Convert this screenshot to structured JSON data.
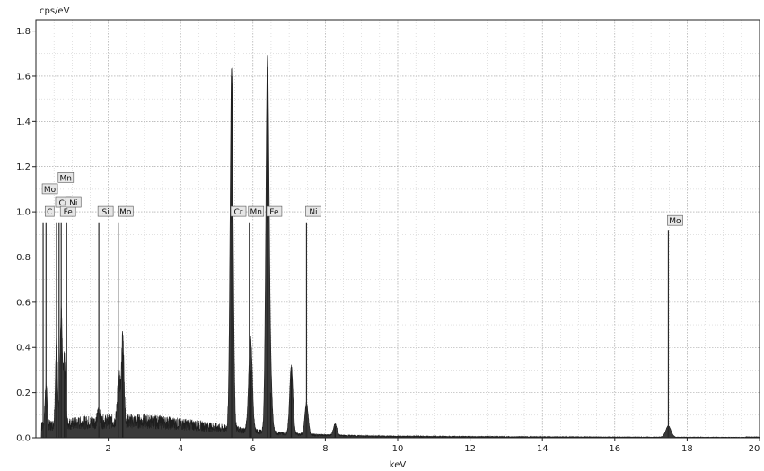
{
  "chart_data": {
    "type": "area",
    "ylabel": "cps/eV",
    "xlabel": "keV",
    "xlim": [
      0,
      20
    ],
    "ylim": [
      0,
      1.85
    ],
    "x_ticks": [
      2,
      4,
      6,
      8,
      10,
      12,
      14,
      16,
      18,
      20
    ],
    "y_ticks": [
      0.0,
      0.2,
      0.4,
      0.6,
      0.8,
      1.0,
      1.2,
      1.4,
      1.6,
      1.8
    ],
    "grid": true,
    "peaks": [
      {
        "x": 0.28,
        "y": 0.18
      },
      {
        "x": 0.57,
        "y": 0.38
      },
      {
        "x": 0.7,
        "y": 0.5
      },
      {
        "x": 0.79,
        "y": 0.3
      },
      {
        "x": 1.74,
        "y": 0.05
      },
      {
        "x": 2.29,
        "y": 0.22
      },
      {
        "x": 2.4,
        "y": 0.38
      },
      {
        "x": 5.41,
        "y": 1.6
      },
      {
        "x": 5.95,
        "y": 0.3
      },
      {
        "x": 5.9,
        "y": 0.18
      },
      {
        "x": 6.4,
        "y": 1.64
      },
      {
        "x": 6.49,
        "y": 0.2
      },
      {
        "x": 7.06,
        "y": 0.3
      },
      {
        "x": 7.48,
        "y": 0.14
      },
      {
        "x": 8.27,
        "y": 0.05
      },
      {
        "x": 17.48,
        "y": 0.05
      }
    ],
    "element_markers": [
      {
        "label": "C",
        "x": 0.28,
        "height": 0.95,
        "label_y": 1.0
      },
      {
        "label": "Mo",
        "x": 0.2,
        "height": 0.95,
        "label_y": 1.1
      },
      {
        "label": "Cr",
        "x": 0.57,
        "height": 0.95,
        "label_y": 1.04
      },
      {
        "label": "Mn",
        "x": 0.64,
        "height": 0.95,
        "label_y": 1.15
      },
      {
        "label": "Fe",
        "x": 0.7,
        "height": 0.95,
        "label_y": 1.0
      },
      {
        "label": "Ni",
        "x": 0.85,
        "height": 0.95,
        "label_y": 1.04
      },
      {
        "label": "Si",
        "x": 1.74,
        "height": 0.95,
        "label_y": 1.0
      },
      {
        "label": "Mo",
        "x": 2.29,
        "height": 0.95,
        "label_y": 1.0
      },
      {
        "label": "Cr",
        "x": 5.41,
        "height": 0.95,
        "label_y": 1.0
      },
      {
        "label": "Mn",
        "x": 5.9,
        "height": 0.95,
        "label_y": 1.0
      },
      {
        "label": "Fe",
        "x": 6.4,
        "height": 0.95,
        "label_y": 1.0
      },
      {
        "label": "Ni",
        "x": 7.48,
        "height": 0.95,
        "label_y": 1.0
      },
      {
        "label": "Mo",
        "x": 17.48,
        "height": 0.92,
        "label_y": 0.96
      }
    ]
  }
}
